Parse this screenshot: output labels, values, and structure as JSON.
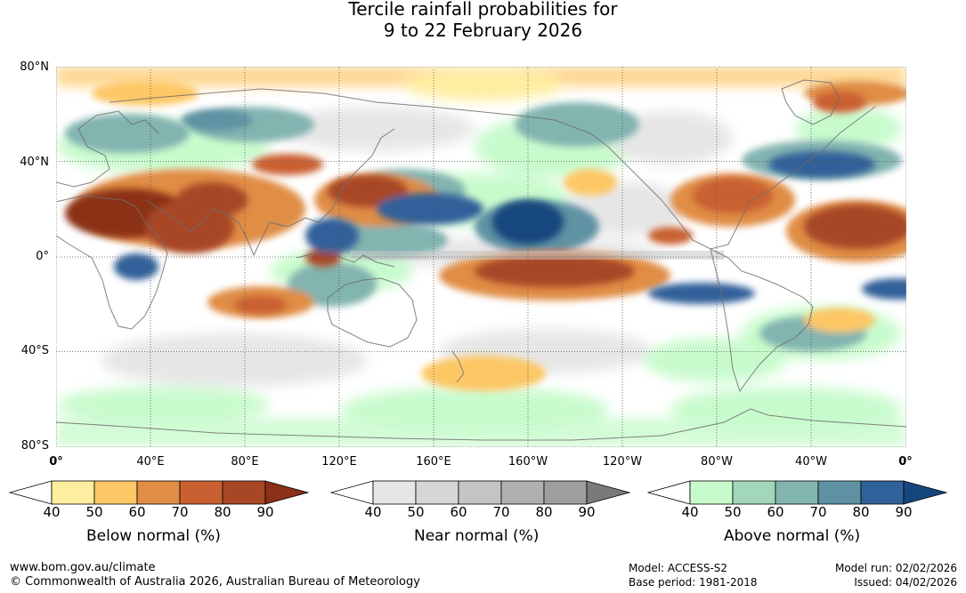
{
  "title": {
    "line1": "Tercile rainfall probabilities for",
    "line2": "9 to 22 February 2026"
  },
  "axes": {
    "lat_labels": [
      "80°N",
      "40°N",
      "0°",
      "40°S",
      "80°S"
    ],
    "lon_labels": [
      "0°",
      "40°E",
      "80°E",
      "120°E",
      "160°E",
      "160°W",
      "120°W",
      "80°W",
      "40°W",
      "0°"
    ]
  },
  "legends": [
    {
      "name": "Below normal (%)",
      "ticks": [
        "40",
        "50",
        "60",
        "70",
        "80",
        "90"
      ],
      "colors": [
        "#ffffff",
        "#feeea0",
        "#fdc765",
        "#e08d45",
        "#c96032",
        "#a84726",
        "#8b3019"
      ]
    },
    {
      "name": "Near normal (%)",
      "ticks": [
        "40",
        "50",
        "60",
        "70",
        "80",
        "90"
      ],
      "colors": [
        "#ffffff",
        "#e6e6e6",
        "#d6d6d6",
        "#c4c4c4",
        "#b0b0b0",
        "#9e9e9e",
        "#7a7a7a"
      ]
    },
    {
      "name": "Above normal (%)",
      "ticks": [
        "40",
        "50",
        "60",
        "70",
        "80",
        "90"
      ],
      "colors": [
        "#ffffff",
        "#c8fbcc",
        "#a2d7bc",
        "#82b4b0",
        "#5e92a3",
        "#31619a",
        "#15477e"
      ]
    }
  ],
  "footer": {
    "website": "www.bom.gov.au/climate",
    "copyright": "© Commonwealth of Australia 2026, Australian Bureau of Meteorology",
    "model": "Model: ACCESS-S2",
    "base_period": "Base period: 1981-2018",
    "model_run": "Model run: 02/02/2026",
    "issued": "Issued: 04/02/2026"
  }
}
